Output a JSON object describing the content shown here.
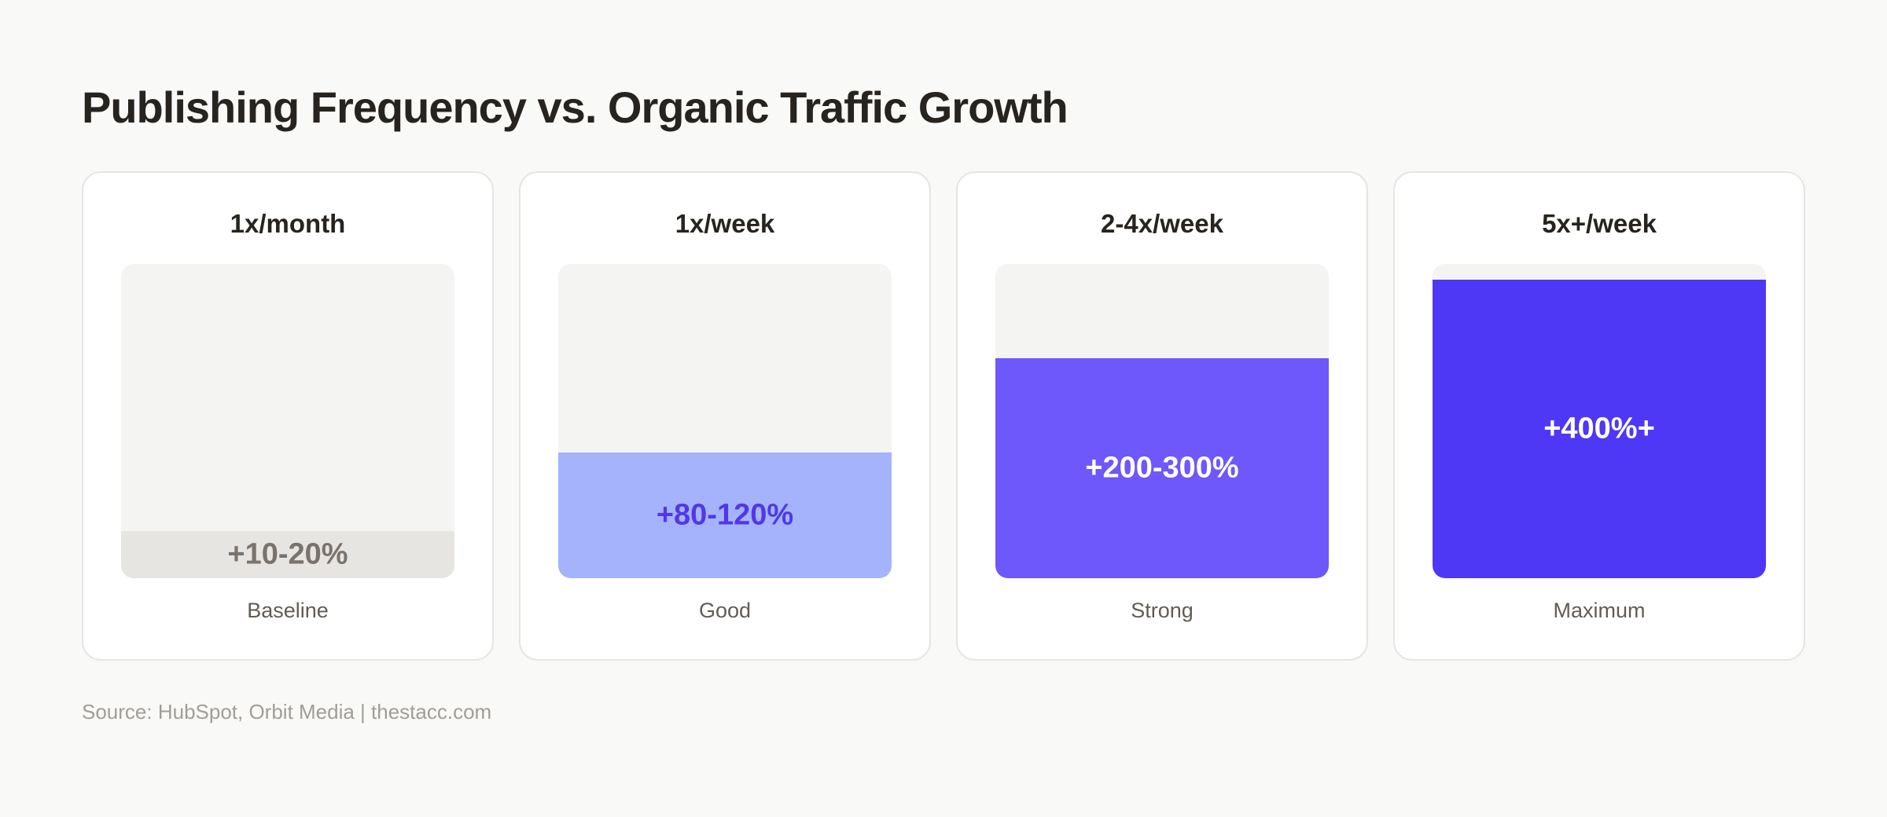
{
  "chart_data": {
    "type": "bar",
    "title": "Publishing Frequency vs. Organic Traffic Growth",
    "categories": [
      "1x/month",
      "1x/week",
      "2-4x/week",
      "5x+/week"
    ],
    "value_labels": [
      "+10-20%",
      "+80-120%",
      "+200-300%",
      "+400%+"
    ],
    "tiers": [
      "Baseline",
      "Good",
      "Strong",
      "Maximum"
    ],
    "fill_percent": [
      15,
      40,
      70,
      95
    ],
    "colors": {
      "fills": [
        "#e6e5e2",
        "#a5b3fd",
        "#6e57fb",
        "#4f38f5"
      ],
      "labels": [
        "#7a736c",
        "#5038e8",
        "#ffffff",
        "#ffffff"
      ]
    },
    "source": "Source: HubSpot, Orbit Media  |  thestacc.com"
  }
}
